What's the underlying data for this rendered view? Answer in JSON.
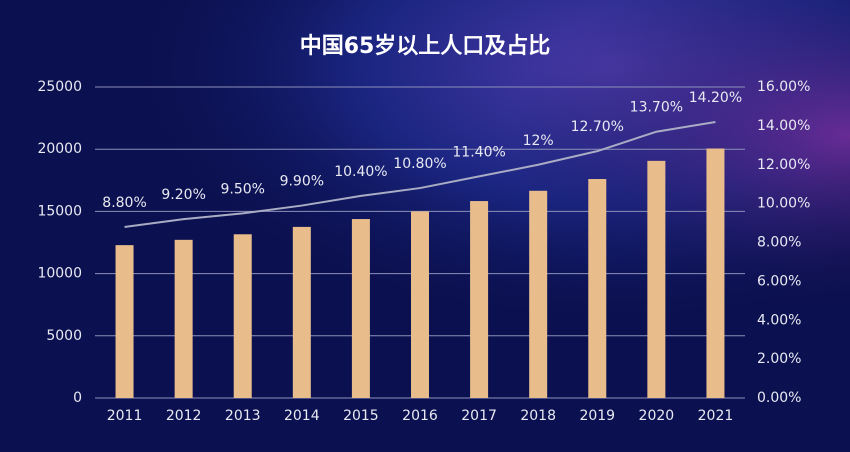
{
  "chart_data": {
    "type": "bar",
    "title": "中国65岁以上人口及占比",
    "categories": [
      "2011",
      "2012",
      "2013",
      "2014",
      "2015",
      "2016",
      "2017",
      "2018",
      "2019",
      "2020",
      "2021"
    ],
    "series": [
      {
        "type": "bar",
        "color": "#e8bd8b",
        "values": [
          12288,
          12714,
          13161,
          13755,
          14386,
          15003,
          15831,
          16658,
          17603,
          19064,
          20056
        ]
      },
      {
        "type": "line",
        "axis": "y2",
        "color": "#a9acc4",
        "values": [
          8.8,
          9.2,
          9.5,
          9.9,
          10.4,
          10.8,
          11.4,
          12,
          12.7,
          13.7,
          14.2
        ],
        "value_labels": [
          "8.80%",
          "9.20%",
          "9.50%",
          "9.90%",
          "10.40%",
          "10.80%",
          "11.40%",
          "12%",
          "12.70%",
          "13.70%",
          "14.20%"
        ]
      }
    ],
    "ylim": [
      0,
      25000
    ],
    "yticks": [
      0,
      5000,
      10000,
      15000,
      20000,
      25000
    ],
    "y2lim": [
      0,
      16
    ],
    "y2ticks": [
      {
        "value": 0,
        "label": "0.00%"
      },
      {
        "value": 2,
        "label": "2.00%"
      },
      {
        "value": 4,
        "label": "4.00%"
      },
      {
        "value": 6,
        "label": "6.00%"
      },
      {
        "value": 8,
        "label": "8.00%"
      },
      {
        "value": 10,
        "label": "10.00%"
      },
      {
        "value": 12,
        "label": "12.00%"
      },
      {
        "value": 14,
        "label": "14.00%"
      },
      {
        "value": 16,
        "label": "16.00%"
      }
    ],
    "grid": true
  }
}
